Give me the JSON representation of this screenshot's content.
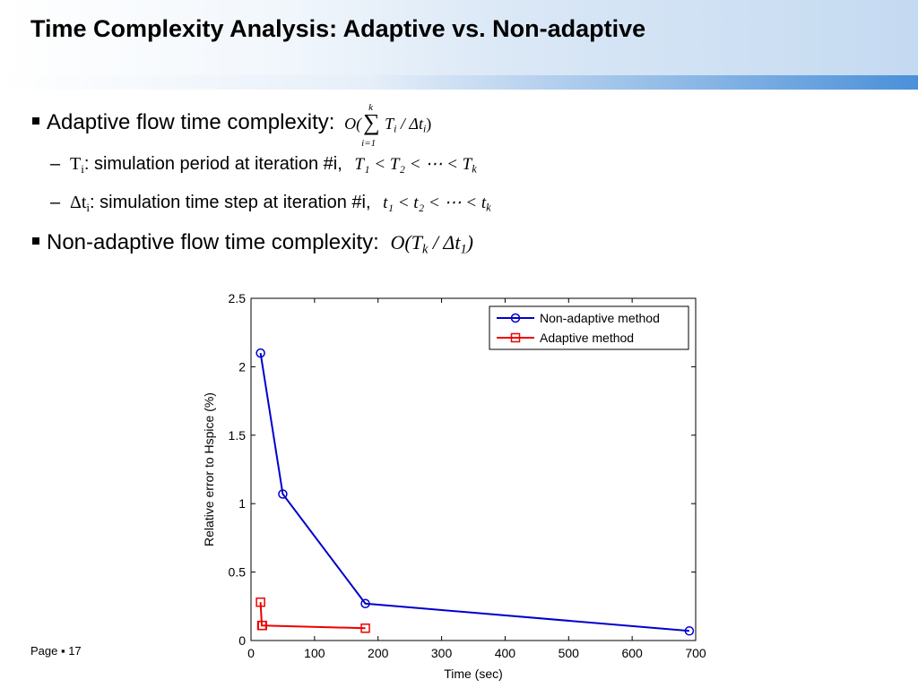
{
  "slide": {
    "title": "Time Complexity Analysis: Adaptive vs. Non-adaptive",
    "bullet1_text": "Adaptive flow time complexity:",
    "bullet1_formula_O": "O(",
    "bullet1_formula_k": "k",
    "bullet1_formula_sum": "∑",
    "bullet1_formula_i1": "i=1",
    "bullet1_formula_rest": "T",
    "bullet1_formula_sub_i": "i",
    "bullet1_formula_div": " / Δt",
    "bullet1_formula_sub_i2": "i",
    "bullet1_formula_close": ")",
    "sub1_sym": "T",
    "sub1_sym_sub": "i",
    "sub1_text": ": simulation period at iteration #i,",
    "sub1_formula": "T₁ < T₂ < ⋯ < T",
    "sub1_formula_sub": "k",
    "sub2_sym": "Δt",
    "sub2_sym_sub": "i",
    "sub2_text": ": simulation time step at iteration #i,",
    "sub2_formula": "t₁ < t₂ < ⋯ < t",
    "sub2_formula_sub": "k",
    "bullet2_text": "Non-adaptive flow time complexity:",
    "bullet2_formula_a": "O(T",
    "bullet2_formula_sub_k": "k",
    "bullet2_formula_b": " / Δt",
    "bullet2_formula_sub_1": "1",
    "bullet2_formula_close": ")",
    "footer": "Page ▪ 17"
  },
  "chart_data": {
    "type": "line",
    "xlabel": "Time (sec)",
    "ylabel": "Relative error to Hspice (%)",
    "xlim": [
      0,
      700
    ],
    "ylim": [
      0,
      2.5
    ],
    "xticks": [
      "0",
      "100",
      "200",
      "300",
      "400",
      "500",
      "600",
      "700"
    ],
    "yticks": [
      "0",
      "0.5",
      "1",
      "1.5",
      "2",
      "2.5"
    ],
    "grid": false,
    "legend_position": "top-right",
    "series": [
      {
        "name": "Non-adaptive method",
        "color": "#0000cc",
        "marker": "circle",
        "x": [
          15,
          50,
          180,
          690
        ],
        "y": [
          2.1,
          1.07,
          0.27,
          0.07
        ]
      },
      {
        "name": "Adaptive method",
        "color": "#ee0000",
        "marker": "square",
        "x": [
          15,
          17,
          18,
          180
        ],
        "y": [
          0.28,
          0.11,
          0.11,
          0.09
        ]
      }
    ]
  }
}
